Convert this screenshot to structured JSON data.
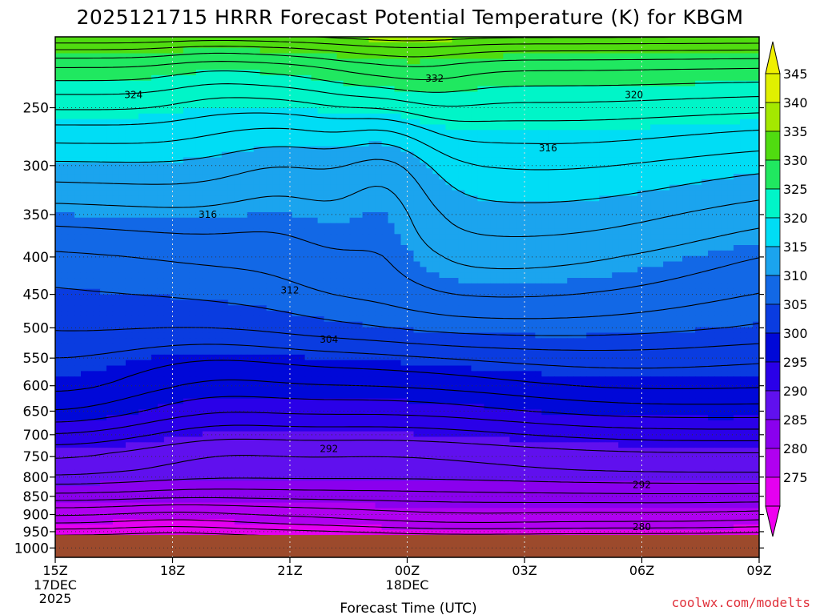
{
  "chart_data": {
    "type": "heatmap",
    "title": "2025121715 HRRR Forecast Potential Temperature (K) for KBGM",
    "xlabel": "Forecast Time (UTC)",
    "ylabel": "",
    "x_ticks": [
      {
        "label": "15Z",
        "sub": [
          "17DEC",
          "2025"
        ],
        "hour": 0
      },
      {
        "label": "18Z",
        "sub": [],
        "hour": 3
      },
      {
        "label": "21Z",
        "sub": [],
        "hour": 6
      },
      {
        "label": "00Z",
        "sub": [
          "18DEC"
        ],
        "hour": 9
      },
      {
        "label": "03Z",
        "sub": [],
        "hour": 12
      },
      {
        "label": "06Z",
        "sub": [],
        "hour": 15
      },
      {
        "label": "09Z",
        "sub": [],
        "hour": 18
      }
    ],
    "y_ticks": [
      250,
      300,
      350,
      400,
      450,
      500,
      550,
      600,
      650,
      700,
      750,
      800,
      850,
      900,
      950,
      1000
    ],
    "y_axis": "pressure (hPa), log scale, inverted",
    "ylim": [
      200,
      1030
    ],
    "xlim": [
      0,
      18
    ],
    "surface_pressure": 960,
    "colorbar": {
      "levels": [
        275,
        280,
        285,
        290,
        295,
        300,
        305,
        310,
        315,
        320,
        325,
        330,
        335,
        340,
        345
      ],
      "colors": [
        "#e400f0",
        "#b000f0",
        "#8a00ee",
        "#6010ee",
        "#2a00e8",
        "#0008d8",
        "#0a3ce0",
        "#1268e6",
        "#1ba4ee",
        "#00ddf5",
        "#00f5c8",
        "#20e860",
        "#50dc10",
        "#a4e800",
        "#e0f000"
      ],
      "under_color": "#f000f0",
      "over_color": "#f0f000"
    },
    "hours": [
      0,
      1,
      2,
      3,
      4,
      5,
      6,
      7,
      8,
      9,
      10,
      11,
      12,
      13,
      14,
      15,
      16,
      17,
      18
    ],
    "contour_levels": [
      276,
      278,
      280,
      282,
      284,
      286,
      288,
      290,
      292,
      294,
      296,
      298,
      300,
      302,
      304,
      306,
      308,
      310,
      312,
      314,
      316,
      318,
      320,
      322,
      324,
      326,
      328,
      330,
      332,
      334,
      336,
      338,
      340
    ],
    "profile_pressures": [
      960,
      925,
      880,
      840,
      790,
      740,
      700,
      650,
      600,
      550,
      500,
      450,
      400,
      350,
      300,
      265,
      240,
      220,
      208,
      200
    ],
    "profile_thetas": [
      276,
      280,
      284,
      288,
      292,
      294,
      297,
      301,
      304,
      306,
      309,
      311,
      313,
      316,
      320,
      324,
      328,
      332,
      336,
      340
    ],
    "contour_labels": [
      {
        "text": "324",
        "hour": 2.0,
        "p": 240
      },
      {
        "text": "332",
        "hour": 9.7,
        "p": 228
      },
      {
        "text": "320",
        "hour": 14.8,
        "p": 240
      },
      {
        "text": "316",
        "hour": 12.6,
        "p": 284
      },
      {
        "text": "316",
        "hour": 3.9,
        "p": 350
      },
      {
        "text": "312",
        "hour": 6.0,
        "p": 444
      },
      {
        "text": "304",
        "hour": 7.0,
        "p": 519
      },
      {
        "text": "292",
        "hour": 7.0,
        "p": 732
      },
      {
        "text": "292",
        "hour": 15.0,
        "p": 820
      },
      {
        "text": "280",
        "hour": 15.0,
        "p": 936
      }
    ],
    "credit": "coolwx.com/modelts"
  }
}
